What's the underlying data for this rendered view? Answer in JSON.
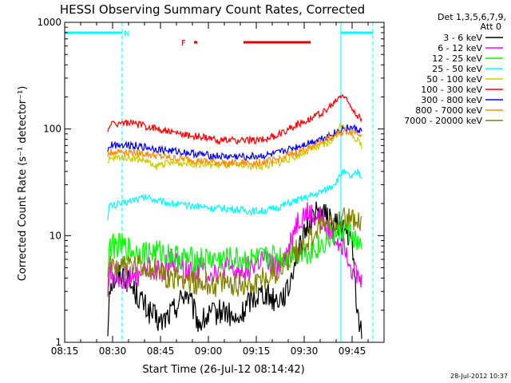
{
  "chart_data": {
    "type": "line",
    "title": "HESSI Observing Summary Count Rates, Corrected",
    "xlabel": "Start Time (26-Jul-12 08:14:42)",
    "ylabel": "Corrected Count Rate (s⁻¹ detector⁻¹)",
    "y_scale": "log",
    "ylim": [
      1,
      1000
    ],
    "xlim_minutes": [
      0,
      100
    ],
    "x_ticks": [
      "08:15",
      "08:30",
      "08:45",
      "09:00",
      "09:15",
      "09:30",
      "09:45"
    ],
    "y_ticks": [
      "1",
      "10",
      "100",
      "1000"
    ],
    "legend": {
      "header": [
        "Det 1,3,5,6,7,9,",
        "Att 0"
      ],
      "placement": "right"
    },
    "series": [
      {
        "name": "3 - 6 keV",
        "color": "#000000",
        "points": [
          [
            13.5,
            1.2
          ],
          [
            14,
            3.5
          ],
          [
            18,
            4.5
          ],
          [
            22,
            3
          ],
          [
            26,
            2
          ],
          [
            30,
            1.5
          ],
          [
            34,
            2
          ],
          [
            38,
            3
          ],
          [
            42,
            1.5
          ],
          [
            46,
            1.8
          ],
          [
            50,
            2
          ],
          [
            54,
            1.5
          ],
          [
            58,
            2.5
          ],
          [
            62,
            3
          ],
          [
            66,
            2.5
          ],
          [
            70,
            3
          ],
          [
            72,
            6
          ],
          [
            74,
            8
          ],
          [
            76,
            12
          ],
          [
            78,
            16
          ],
          [
            80,
            17
          ],
          [
            82,
            15
          ],
          [
            84,
            13
          ],
          [
            86,
            12
          ],
          [
            88,
            11
          ],
          [
            90,
            8
          ],
          [
            92,
            1.5
          ],
          [
            93,
            1.3
          ]
        ]
      },
      {
        "name": "6 - 12 keV",
        "color": "#ff00ff",
        "points": [
          [
            13.5,
            3
          ],
          [
            14,
            4.5
          ],
          [
            18,
            4
          ],
          [
            22,
            4
          ],
          [
            26,
            5
          ],
          [
            30,
            4.5
          ],
          [
            34,
            6
          ],
          [
            38,
            4.5
          ],
          [
            42,
            5
          ],
          [
            46,
            4.5
          ],
          [
            50,
            5
          ],
          [
            54,
            4.5
          ],
          [
            58,
            5
          ],
          [
            62,
            6
          ],
          [
            66,
            5
          ],
          [
            70,
            7
          ],
          [
            72,
            12
          ],
          [
            74,
            15
          ],
          [
            76,
            16
          ],
          [
            78,
            15
          ],
          [
            80,
            14
          ],
          [
            82,
            12
          ],
          [
            84,
            10
          ],
          [
            86,
            9
          ],
          [
            88,
            8
          ],
          [
            90,
            5
          ],
          [
            92,
            4
          ],
          [
            93,
            3.5
          ]
        ]
      },
      {
        "name": "12 - 25 keV",
        "color": "#00ff00",
        "points": [
          [
            13.5,
            5
          ],
          [
            14,
            8
          ],
          [
            18,
            8
          ],
          [
            22,
            7
          ],
          [
            26,
            7
          ],
          [
            30,
            7
          ],
          [
            34,
            6.5
          ],
          [
            38,
            6
          ],
          [
            42,
            6
          ],
          [
            46,
            6
          ],
          [
            50,
            6
          ],
          [
            54,
            6
          ],
          [
            58,
            6
          ],
          [
            62,
            6
          ],
          [
            66,
            6.5
          ],
          [
            70,
            6
          ],
          [
            72,
            7
          ],
          [
            74,
            7
          ],
          [
            76,
            7
          ],
          [
            78,
            7.5
          ],
          [
            80,
            8
          ],
          [
            82,
            9
          ],
          [
            84,
            10
          ],
          [
            86,
            11
          ],
          [
            88,
            12
          ],
          [
            90,
            10
          ],
          [
            92,
            8
          ],
          [
            93,
            7
          ]
        ]
      },
      {
        "name": "25 - 50 keV",
        "color": "#00ffff",
        "points": [
          [
            13.5,
            15
          ],
          [
            14,
            19
          ],
          [
            18,
            20
          ],
          [
            22,
            22
          ],
          [
            26,
            23
          ],
          [
            30,
            21
          ],
          [
            34,
            20
          ],
          [
            38,
            19
          ],
          [
            42,
            19
          ],
          [
            46,
            18
          ],
          [
            50,
            18
          ],
          [
            54,
            17.5
          ],
          [
            58,
            17
          ],
          [
            62,
            17
          ],
          [
            66,
            18
          ],
          [
            70,
            20
          ],
          [
            74,
            22
          ],
          [
            78,
            24
          ],
          [
            82,
            27
          ],
          [
            84,
            30
          ],
          [
            86,
            35
          ],
          [
            87,
            40
          ],
          [
            88,
            38
          ],
          [
            90,
            35
          ],
          [
            92,
            40
          ],
          [
            93,
            35
          ]
        ]
      },
      {
        "name": "50 - 100 keV",
        "color": "#cccc00",
        "points": [
          [
            13.5,
            45
          ],
          [
            14,
            52
          ],
          [
            18,
            55
          ],
          [
            22,
            53
          ],
          [
            26,
            50
          ],
          [
            28,
            43
          ],
          [
            30,
            47
          ],
          [
            34,
            48
          ],
          [
            38,
            48
          ],
          [
            42,
            47
          ],
          [
            46,
            46
          ],
          [
            50,
            46
          ],
          [
            54,
            45
          ],
          [
            58,
            45
          ],
          [
            62,
            45
          ],
          [
            66,
            47
          ],
          [
            70,
            52
          ],
          [
            74,
            58
          ],
          [
            78,
            65
          ],
          [
            82,
            72
          ],
          [
            84,
            80
          ],
          [
            86,
            100
          ],
          [
            87,
            115
          ],
          [
            88,
            105
          ],
          [
            90,
            90
          ],
          [
            92,
            75
          ],
          [
            93,
            70
          ]
        ]
      },
      {
        "name": "100 - 300 keV",
        "color": "#ff0000",
        "points": [
          [
            13.5,
            90
          ],
          [
            14,
            110
          ],
          [
            18,
            115
          ],
          [
            22,
            112
          ],
          [
            26,
            105
          ],
          [
            30,
            100
          ],
          [
            34,
            92
          ],
          [
            38,
            88
          ],
          [
            42,
            85
          ],
          [
            46,
            80
          ],
          [
            50,
            78
          ],
          [
            54,
            78
          ],
          [
            58,
            78
          ],
          [
            62,
            80
          ],
          [
            66,
            85
          ],
          [
            70,
            100
          ],
          [
            74,
            115
          ],
          [
            78,
            130
          ],
          [
            82,
            150
          ],
          [
            84,
            170
          ],
          [
            86,
            200
          ],
          [
            87,
            210
          ],
          [
            88,
            190
          ],
          [
            90,
            160
          ],
          [
            92,
            130
          ],
          [
            93,
            120
          ]
        ]
      },
      {
        "name": "300 - 800 keV",
        "color": "#0000ff",
        "points": [
          [
            13.5,
            60
          ],
          [
            14,
            70
          ],
          [
            18,
            72
          ],
          [
            22,
            70
          ],
          [
            26,
            67
          ],
          [
            30,
            64
          ],
          [
            34,
            62
          ],
          [
            38,
            60
          ],
          [
            42,
            58
          ],
          [
            46,
            56
          ],
          [
            50,
            55
          ],
          [
            54,
            55
          ],
          [
            58,
            55
          ],
          [
            62,
            56
          ],
          [
            66,
            58
          ],
          [
            70,
            64
          ],
          [
            74,
            70
          ],
          [
            78,
            77
          ],
          [
            82,
            85
          ],
          [
            84,
            90
          ],
          [
            86,
            97
          ],
          [
            88,
            103
          ],
          [
            90,
            102
          ],
          [
            92,
            98
          ],
          [
            93,
            95
          ]
        ]
      },
      {
        "name": "800 - 7000 keV",
        "color": "#ff8c00",
        "points": [
          [
            13.5,
            55
          ],
          [
            14,
            60
          ],
          [
            18,
            62
          ],
          [
            22,
            60
          ],
          [
            26,
            58
          ],
          [
            30,
            55
          ],
          [
            34,
            53
          ],
          [
            38,
            52
          ],
          [
            42,
            50
          ],
          [
            46,
            49
          ],
          [
            50,
            48
          ],
          [
            54,
            48
          ],
          [
            58,
            48
          ],
          [
            62,
            49
          ],
          [
            66,
            51
          ],
          [
            70,
            56
          ],
          [
            74,
            62
          ],
          [
            78,
            70
          ],
          [
            82,
            80
          ],
          [
            84,
            85
          ],
          [
            86,
            90
          ],
          [
            88,
            95
          ],
          [
            90,
            95
          ],
          [
            92,
            92
          ],
          [
            93,
            90
          ]
        ]
      },
      {
        "name": "7000 - 20000 keV",
        "color": "#808000",
        "points": [
          [
            13.5,
            3
          ],
          [
            14,
            5
          ],
          [
            18,
            5.5
          ],
          [
            22,
            5
          ],
          [
            26,
            5
          ],
          [
            30,
            4.5
          ],
          [
            34,
            4
          ],
          [
            38,
            4
          ],
          [
            42,
            3.5
          ],
          [
            46,
            3.5
          ],
          [
            50,
            3.5
          ],
          [
            54,
            3.5
          ],
          [
            58,
            3.5
          ],
          [
            62,
            4
          ],
          [
            66,
            4.5
          ],
          [
            70,
            6
          ],
          [
            74,
            8
          ],
          [
            78,
            10
          ],
          [
            80,
            12
          ],
          [
            82,
            13
          ],
          [
            84,
            14
          ],
          [
            86,
            15
          ],
          [
            88,
            15
          ],
          [
            90,
            14
          ],
          [
            92,
            13
          ],
          [
            93,
            12
          ]
        ]
      }
    ],
    "annotations": {
      "night_label": "N",
      "flare_label": "F",
      "attenuator_value": 800,
      "night_segments": [
        [
          0,
          18
        ],
        [
          86.5,
          96.5
        ]
      ],
      "saa_boundaries": [
        18,
        96.5
      ],
      "day_boundary": 86.5,
      "flare_marker": [
        [
          40.5,
          41.5
        ]
      ],
      "flare_bar": [
        [
          56,
          77
        ]
      ]
    },
    "colors": {
      "night": "#00ffff",
      "flare": "#e00000"
    }
  },
  "footer": {
    "date_stamp": "28-Jul-2012 10:37"
  }
}
